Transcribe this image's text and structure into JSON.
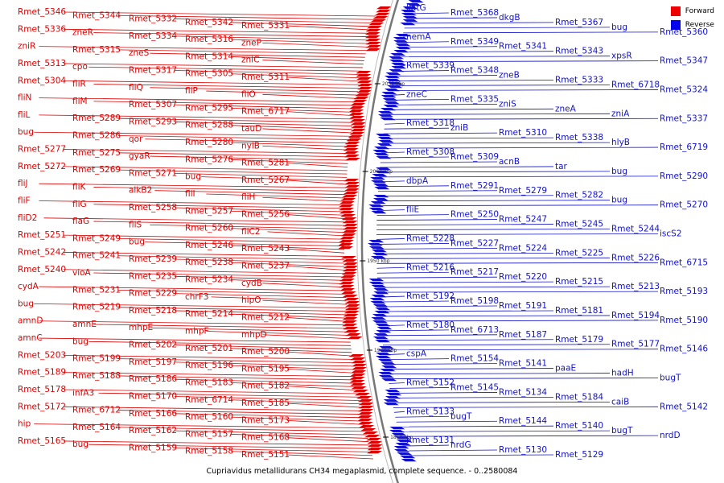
{
  "caption": "Cupriavidus metallidurans CH34 megaplasmid, complete sequence. - 0..2580084",
  "legend": [
    {
      "label": "Forward",
      "color": "#ee0000"
    },
    {
      "label": "Reverse",
      "color": "#0000ee"
    }
  ],
  "colors": {
    "forward": "#dd0000",
    "reverse": "#1111cc",
    "backbone": "#777777"
  },
  "ticks": [
    "2050 kbp",
    "2000 kbp",
    "1950 kbp",
    "1900 kbp",
    "1850 kbp"
  ],
  "forward_labels": [
    "Rmet_5346",
    "Rmet_5344",
    "Rmet_5332",
    "Rmet_5342",
    "Rmet_5331",
    "Rmet_5336",
    "zneR",
    "Rmet_5334",
    "Rmet_5316",
    "zneP",
    "zniR",
    "Rmet_5315",
    "zneS",
    "Rmet_5314",
    "zniC",
    "Rmet_5313",
    "cpo",
    "Rmet_5317",
    "Rmet_5305",
    "Rmet_5311",
    "Rmet_5304",
    "fliR",
    "fliQ",
    "fliP",
    "fliO",
    "fliN",
    "fliM",
    "Rmet_5307",
    "Rmet_5295",
    "Rmet_6717",
    "fliL",
    "Rmet_5289",
    "Rmet_5293",
    "Rmet_5288",
    "tauD",
    "bug",
    "Rmet_5286",
    "qor",
    "Rmet_5280",
    "nylB",
    "Rmet_5277",
    "Rmet_5275",
    "gyaR",
    "Rmet_5276",
    "Rmet_5281",
    "Rmet_5272",
    "Rmet_5269",
    "Rmet_5271",
    "bug",
    "Rmet_5267",
    "fliJ",
    "fliK",
    "alkB2",
    "fliI",
    "fliH",
    "fliF",
    "fliG",
    "Rmet_5258",
    "Rmet_5257",
    "Rmet_5256",
    "fliD2",
    "flaG",
    "fliS",
    "Rmet_5260",
    "fliC2",
    "Rmet_5251",
    "Rmet_5249",
    "bug",
    "Rmet_5246",
    "Rmet_5243",
    "Rmet_5242",
    "Rmet_5241",
    "Rmet_5239",
    "Rmet_5238",
    "Rmet_5237",
    "Rmet_5240",
    "vioA",
    "Rmet_5235",
    "Rmet_5234",
    "cydB",
    "cydA",
    "Rmet_5231",
    "Rmet_5229",
    "chrF3",
    "hipO",
    "bug",
    "Rmet_5219",
    "Rmet_5218",
    "Rmet_5214",
    "Rmet_5212",
    "amnD",
    "amnE",
    "mhpE",
    "mhpF",
    "mhpD",
    "amnC",
    "bug",
    "Rmet_5202",
    "Rmet_5201",
    "Rmet_5200",
    "Rmet_5203",
    "Rmet_5199",
    "Rmet_5197",
    "Rmet_5196",
    "Rmet_5195",
    "Rmet_5189",
    "Rmet_5188",
    "Rmet_5186",
    "Rmet_5183",
    "Rmet_5182",
    "Rmet_5178",
    "infA3",
    "Rmet_5170",
    "Rmet_6714",
    "Rmet_5185",
    "Rmet_5172",
    "Rmet_6712",
    "Rmet_5166",
    "Rmet_5160",
    "Rmet_5173",
    "hip",
    "Rmet_5164",
    "Rmet_5162",
    "Rmet_5157",
    "Rmet_5168",
    "Rmet_5165",
    "bug",
    "Rmet_5159",
    "Rmet_5158",
    "Rmet_5151"
  ],
  "reverse_labels": [
    "katG",
    "Rmet_5368",
    "dkgB",
    "Rmet_5367",
    "bug",
    "Rmet_5360",
    "nemA",
    "Rmet_5349",
    "Rmet_5341",
    "Rmet_5343",
    "xpsR",
    "Rmet_5347",
    "Rmet_5339",
    "Rmet_5348",
    "zneB",
    "Rmet_5333",
    "Rmet_6718",
    "Rmet_5324",
    "zneC",
    "Rmet_5335",
    "zniS",
    "zneA",
    "zniA",
    "Rmet_5337",
    "Rmet_5318",
    "zniB",
    "Rmet_5310",
    "Rmet_5338",
    "hlyB",
    "Rmet_6719",
    "Rmet_5308",
    "Rmet_5309",
    "acnB",
    "tar",
    "bug",
    "Rmet_5290",
    "dbpA",
    "Rmet_5291",
    "Rmet_5279",
    "Rmet_5282",
    "bug",
    "Rmet_5270",
    "fliE",
    "Rmet_5250",
    "Rmet_5247",
    "Rmet_5245",
    "Rmet_5244",
    "iscS2",
    "Rmet_5228",
    "Rmet_5227",
    "Rmet_5224",
    "Rmet_5225",
    "Rmet_5226",
    "Rmet_6715",
    "Rmet_5216",
    "Rmet_5217",
    "Rmet_5220",
    "Rmet_5215",
    "Rmet_5213",
    "Rmet_5193",
    "Rmet_5192",
    "Rmet_5198",
    "Rmet_5191",
    "Rmet_5181",
    "Rmet_5194",
    "Rmet_5190",
    "Rmet_5180",
    "Rmet_6713",
    "Rmet_5187",
    "Rmet_5179",
    "Rmet_5177",
    "Rmet_5146",
    "cspA",
    "Rmet_5154",
    "Rmet_5141",
    "paaE",
    "hadH",
    "bugT",
    "Rmet_5152",
    "Rmet_5145",
    "Rmet_5134",
    "Rmet_5184",
    "caiB",
    "Rmet_5142",
    "Rmet_5133",
    "bugT",
    "Rmet_5144",
    "Rmet_5140",
    "bugT",
    "nrdD",
    "Rmet_5131",
    "nrdG",
    "Rmet_5130",
    "Rmet_5129"
  ]
}
